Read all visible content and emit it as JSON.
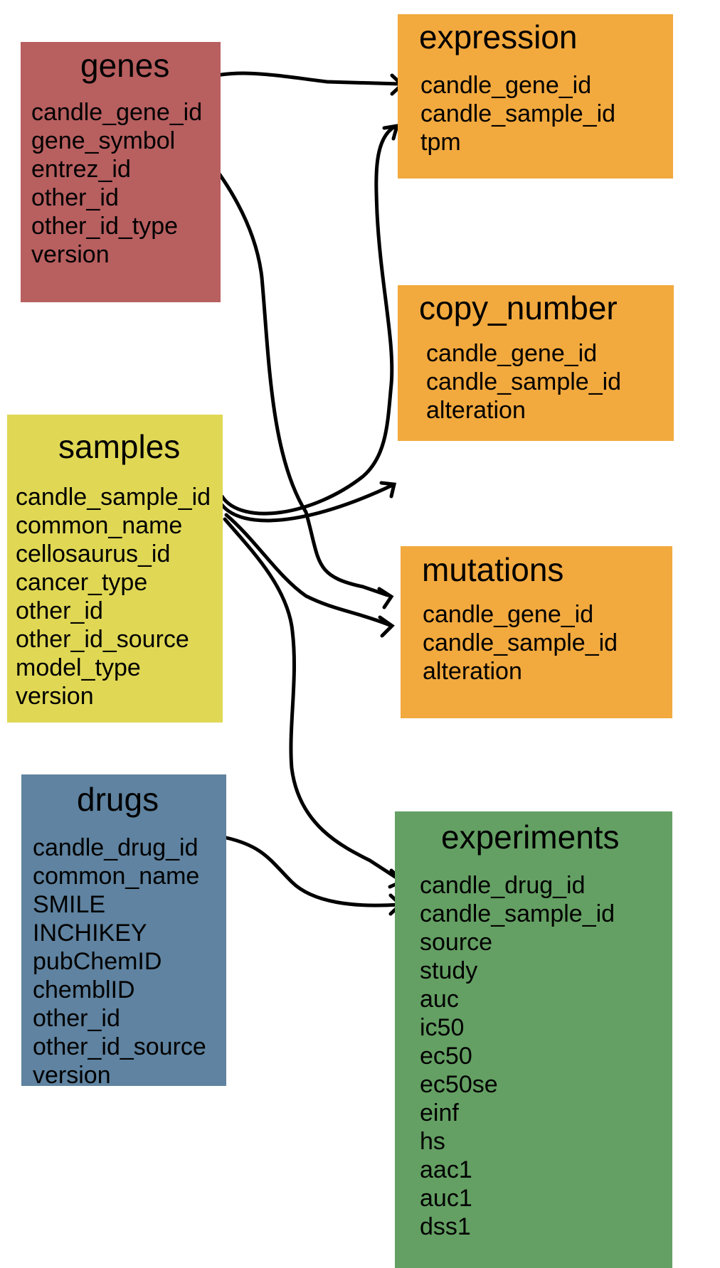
{
  "tables": {
    "genes": {
      "title": "genes",
      "fields": [
        "candle_gene_id",
        "gene_symbol",
        "entrez_id",
        "other_id",
        "other_id_type",
        "version"
      ]
    },
    "samples": {
      "title": "samples",
      "fields": [
        "candle_sample_id",
        "common_name",
        "cellosaurus_id",
        "cancer_type",
        "other_id",
        "other_id_source",
        "model_type",
        "version"
      ]
    },
    "drugs": {
      "title": "drugs",
      "fields": [
        "candle_drug_id",
        "common_name",
        "SMILE",
        "INCHIKEY",
        "pubChemID",
        "chemblID",
        "other_id",
        "other_id_source",
        "version"
      ]
    },
    "expression": {
      "title": "expression",
      "fields": [
        "candle_gene_id",
        "candle_sample_id",
        "tpm"
      ]
    },
    "copy_number": {
      "title": "copy_number",
      "fields": [
        "candle_gene_id",
        "candle_sample_id",
        "alteration"
      ]
    },
    "mutations": {
      "title": "mutations",
      "fields": [
        "candle_gene_id",
        "candle_sample_id",
        "alteration"
      ]
    },
    "experiments": {
      "title": "experiments",
      "fields": [
        "candle_drug_id",
        "candle_sample_id",
        "source",
        "study",
        "auc",
        "ic50",
        "ec50",
        "ec50se",
        "einf",
        "hs",
        "aac1",
        "auc1",
        "dss1"
      ]
    }
  },
  "relationships": [
    {
      "from": "genes",
      "to": "expression"
    },
    {
      "from": "genes",
      "to": "mutations"
    },
    {
      "from": "samples",
      "to": "expression"
    },
    {
      "from": "samples",
      "to": "copy_number"
    },
    {
      "from": "samples",
      "to": "mutations"
    },
    {
      "from": "samples",
      "to": "experiments"
    },
    {
      "from": "drugs",
      "to": "experiments"
    }
  ]
}
